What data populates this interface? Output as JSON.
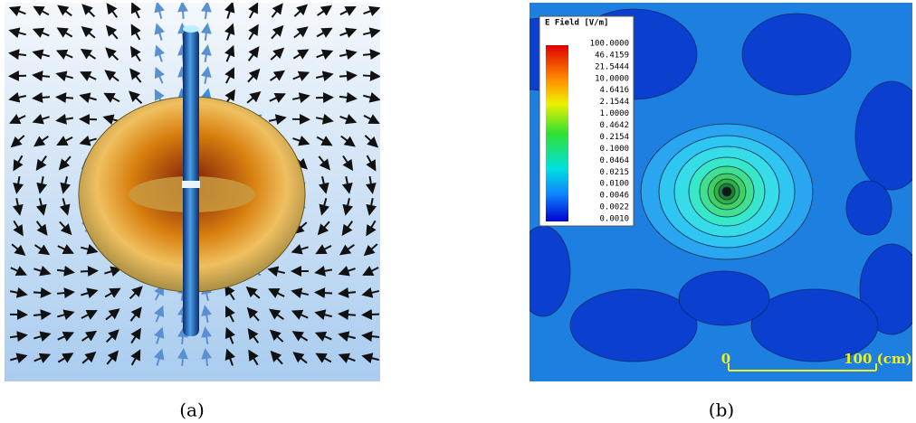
{
  "captions": [
    "(a)",
    "(b)"
  ],
  "panel_b": {
    "legend": {
      "title": "E Field [V/m]",
      "labels": [
        "100.0000",
        "46.4159",
        "21.5444",
        "10.0000",
        "4.6416",
        "2.1544",
        "1.0000",
        "0.4642",
        "0.2154",
        "0.1000",
        "0.0464",
        "0.0215",
        "0.0100",
        "0.0046",
        "0.0022",
        "0.0010"
      ]
    },
    "scale_bar": {
      "start": "0",
      "end": "100 (cm)"
    }
  }
}
